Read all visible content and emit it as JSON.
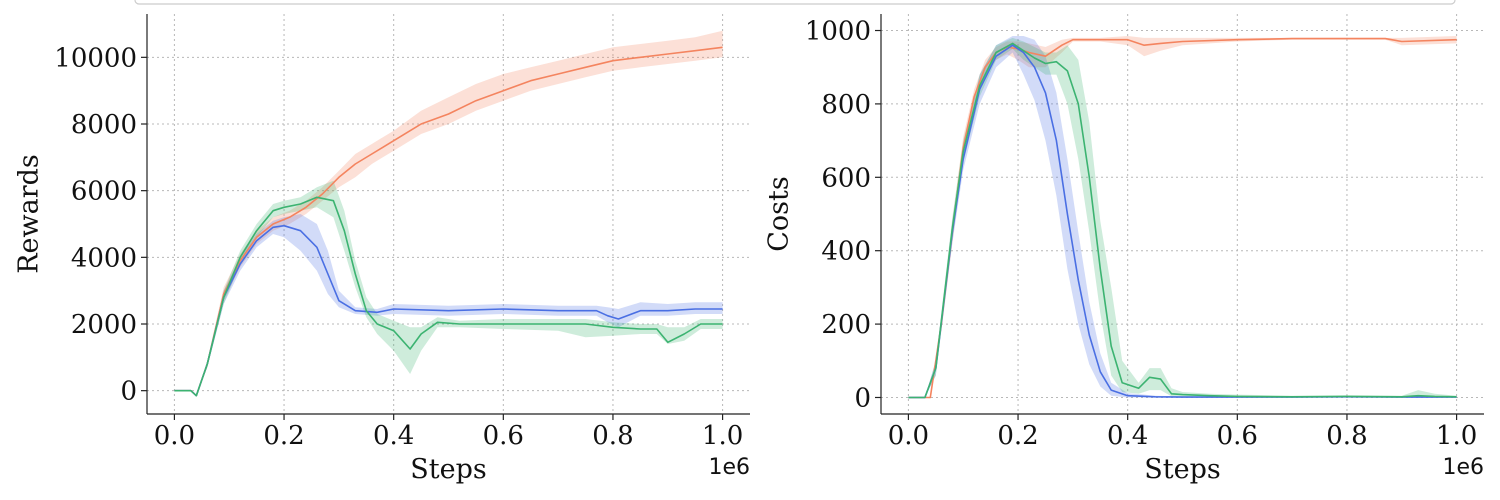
{
  "chart_data": [
    {
      "type": "line",
      "title": "",
      "xlabel": "Steps",
      "ylabel": "Rewards",
      "x_offset_label": "1e6",
      "xlim": [
        -0.05,
        1.05
      ],
      "ylim": [
        -700,
        11300
      ],
      "xticks": [
        0.0,
        0.2,
        0.4,
        0.6,
        0.8,
        1.0
      ],
      "xtick_labels": [
        "0.0",
        "0.2",
        "0.4",
        "0.6",
        "0.8",
        "1.0"
      ],
      "yticks": [
        0,
        2000,
        4000,
        6000,
        8000,
        10000
      ],
      "ytick_labels": [
        "0",
        "2000",
        "4000",
        "6000",
        "8000",
        "10000"
      ],
      "grid": true,
      "series": [
        {
          "name": "orange",
          "color": "#f4845f",
          "x": [
            0,
            0.03,
            0.04,
            0.06,
            0.09,
            0.12,
            0.15,
            0.18,
            0.21,
            0.24,
            0.27,
            0.3,
            0.33,
            0.36,
            0.4,
            0.45,
            0.5,
            0.55,
            0.6,
            0.65,
            0.7,
            0.75,
            0.8,
            0.85,
            0.9,
            0.95,
            1.0
          ],
          "mean": [
            0,
            0,
            -150,
            800,
            2900,
            3900,
            4600,
            5000,
            5200,
            5500,
            5900,
            6400,
            6800,
            7100,
            7500,
            8000,
            8300,
            8700,
            9000,
            9300,
            9500,
            9700,
            9900,
            10000,
            10100,
            10200,
            10300
          ],
          "low": [
            0,
            0,
            -150,
            700,
            2700,
            3700,
            4400,
            4800,
            5000,
            5300,
            5700,
            6100,
            6400,
            6800,
            7200,
            7700,
            8000,
            8400,
            8700,
            9000,
            9200,
            9400,
            9600,
            9700,
            9800,
            9900,
            10000
          ],
          "high": [
            0,
            0,
            -150,
            900,
            3100,
            4100,
            4800,
            5200,
            5400,
            5700,
            6100,
            6600,
            7100,
            7400,
            7800,
            8400,
            8800,
            9200,
            9500,
            9700,
            9900,
            10100,
            10300,
            10400,
            10500,
            10600,
            10800
          ]
        },
        {
          "name": "blue",
          "color": "#4a6fe3",
          "x": [
            0,
            0.03,
            0.04,
            0.06,
            0.09,
            0.12,
            0.15,
            0.18,
            0.2,
            0.23,
            0.26,
            0.28,
            0.3,
            0.33,
            0.37,
            0.4,
            0.5,
            0.6,
            0.7,
            0.77,
            0.79,
            0.81,
            0.85,
            0.9,
            0.95,
            1.0
          ],
          "mean": [
            0,
            0,
            -150,
            800,
            2800,
            3800,
            4500,
            4900,
            4950,
            4800,
            4300,
            3500,
            2700,
            2400,
            2350,
            2450,
            2400,
            2450,
            2400,
            2400,
            2250,
            2150,
            2400,
            2400,
            2450,
            2450
          ],
          "low": [
            0,
            0,
            -150,
            700,
            2600,
            3600,
            4300,
            4700,
            4600,
            4200,
            3600,
            2900,
            2500,
            2300,
            2250,
            2300,
            2250,
            2300,
            2250,
            2250,
            2050,
            1900,
            2250,
            2250,
            2300,
            2300
          ],
          "high": [
            0,
            0,
            -150,
            900,
            3000,
            4000,
            4700,
            5100,
            5200,
            5300,
            5000,
            4200,
            3000,
            2500,
            2450,
            2600,
            2550,
            2600,
            2550,
            2550,
            2500,
            2450,
            2650,
            2600,
            2650,
            2650
          ]
        },
        {
          "name": "green",
          "color": "#3cb371",
          "x": [
            0,
            0.03,
            0.04,
            0.06,
            0.09,
            0.12,
            0.15,
            0.18,
            0.2,
            0.23,
            0.26,
            0.29,
            0.31,
            0.33,
            0.35,
            0.37,
            0.4,
            0.43,
            0.45,
            0.48,
            0.52,
            0.6,
            0.7,
            0.75,
            0.8,
            0.85,
            0.88,
            0.9,
            0.93,
            0.96,
            1.0
          ],
          "mean": [
            0,
            0,
            -150,
            800,
            2800,
            4000,
            4800,
            5400,
            5500,
            5600,
            5800,
            5700,
            4800,
            3500,
            2400,
            2000,
            1800,
            1250,
            1700,
            2050,
            2000,
            2000,
            2000,
            2000,
            1900,
            1850,
            1850,
            1450,
            1700,
            2000,
            2000
          ],
          "low": [
            0,
            0,
            -150,
            700,
            2600,
            3800,
            4600,
            5200,
            5300,
            5400,
            5500,
            5200,
            4200,
            3100,
            2200,
            1700,
            1200,
            500,
            1200,
            1900,
            1900,
            1850,
            1800,
            1600,
            1650,
            1700,
            1700,
            1400,
            1500,
            1850,
            1850
          ],
          "high": [
            0,
            0,
            -150,
            900,
            3000,
            4200,
            5000,
            5600,
            5700,
            5800,
            6100,
            6300,
            5400,
            3900,
            2800,
            2300,
            2100,
            1900,
            1900,
            2200,
            2100,
            2150,
            2150,
            2150,
            2050,
            2000,
            2000,
            1900,
            1900,
            2150,
            2150
          ]
        }
      ]
    },
    {
      "type": "line",
      "title": "",
      "xlabel": "Steps",
      "ylabel": "Costs",
      "x_offset_label": "1e6",
      "xlim": [
        -0.05,
        1.05
      ],
      "ylim": [
        -45,
        1045
      ],
      "xticks": [
        0.0,
        0.2,
        0.4,
        0.6,
        0.8,
        1.0
      ],
      "xtick_labels": [
        "0.0",
        "0.2",
        "0.4",
        "0.6",
        "0.8",
        "1.0"
      ],
      "yticks": [
        0,
        200,
        400,
        600,
        800,
        1000
      ],
      "ytick_labels": [
        "0",
        "200",
        "400",
        "600",
        "800",
        "1000"
      ],
      "grid": true,
      "series": [
        {
          "name": "orange",
          "color": "#f4845f",
          "x": [
            0,
            0.04,
            0.06,
            0.08,
            0.1,
            0.12,
            0.14,
            0.16,
            0.18,
            0.2,
            0.22,
            0.25,
            0.28,
            0.3,
            0.35,
            0.4,
            0.43,
            0.46,
            0.5,
            0.6,
            0.7,
            0.8,
            0.87,
            0.9,
            1.0
          ],
          "mean": [
            0,
            0,
            200,
            450,
            680,
            820,
            900,
            940,
            955,
            950,
            940,
            930,
            960,
            975,
            975,
            975,
            960,
            965,
            970,
            975,
            978,
            978,
            978,
            970,
            975
          ],
          "low": [
            0,
            0,
            180,
            420,
            650,
            800,
            880,
            920,
            935,
            920,
            900,
            900,
            940,
            970,
            970,
            960,
            930,
            945,
            960,
            970,
            975,
            975,
            975,
            960,
            965
          ],
          "high": [
            0,
            0,
            220,
            480,
            710,
            840,
            920,
            955,
            970,
            970,
            965,
            955,
            975,
            980,
            980,
            985,
            980,
            980,
            980,
            980,
            980,
            980,
            980,
            980,
            985
          ]
        },
        {
          "name": "blue",
          "color": "#4a6fe3",
          "x": [
            0,
            0.03,
            0.05,
            0.08,
            0.1,
            0.13,
            0.16,
            0.19,
            0.21,
            0.23,
            0.25,
            0.27,
            0.29,
            0.31,
            0.33,
            0.35,
            0.37,
            0.4,
            0.45,
            0.5,
            0.6,
            0.7,
            0.8,
            0.9,
            1.0
          ],
          "mean": [
            0,
            0,
            80,
            450,
            650,
            840,
            930,
            960,
            940,
            900,
            830,
            700,
            500,
            320,
            170,
            70,
            20,
            5,
            2,
            1,
            1,
            1,
            2,
            1,
            1
          ],
          "low": [
            0,
            0,
            60,
            420,
            620,
            800,
            900,
            940,
            880,
            810,
            700,
            550,
            350,
            200,
            90,
            30,
            5,
            0,
            0,
            0,
            0,
            0,
            0,
            0,
            0
          ],
          "high": [
            0,
            0,
            100,
            480,
            680,
            880,
            960,
            985,
            985,
            975,
            930,
            830,
            650,
            450,
            260,
            120,
            40,
            12,
            5,
            3,
            3,
            3,
            4,
            3,
            3
          ]
        },
        {
          "name": "green",
          "color": "#3cb371",
          "x": [
            0,
            0.03,
            0.05,
            0.08,
            0.1,
            0.13,
            0.16,
            0.19,
            0.21,
            0.23,
            0.25,
            0.27,
            0.29,
            0.31,
            0.33,
            0.35,
            0.37,
            0.39,
            0.42,
            0.44,
            0.46,
            0.48,
            0.5,
            0.55,
            0.6,
            0.7,
            0.8,
            0.9,
            0.93,
            0.96,
            1.0
          ],
          "mean": [
            0,
            0,
            80,
            460,
            670,
            850,
            940,
            965,
            945,
            925,
            910,
            915,
            890,
            800,
            600,
            350,
            140,
            40,
            25,
            55,
            50,
            10,
            8,
            5,
            3,
            2,
            3,
            2,
            5,
            3,
            2
          ],
          "low": [
            0,
            0,
            60,
            430,
            640,
            820,
            920,
            950,
            920,
            900,
            880,
            880,
            800,
            650,
            450,
            230,
            60,
            15,
            10,
            20,
            20,
            3,
            2,
            1,
            0,
            0,
            0,
            0,
            0,
            0,
            0
          ],
          "high": [
            0,
            0,
            100,
            490,
            700,
            880,
            960,
            980,
            970,
            955,
            940,
            940,
            960,
            920,
            750,
            480,
            300,
            100,
            40,
            80,
            80,
            25,
            15,
            10,
            8,
            5,
            6,
            5,
            20,
            10,
            5
          ]
        }
      ]
    }
  ]
}
